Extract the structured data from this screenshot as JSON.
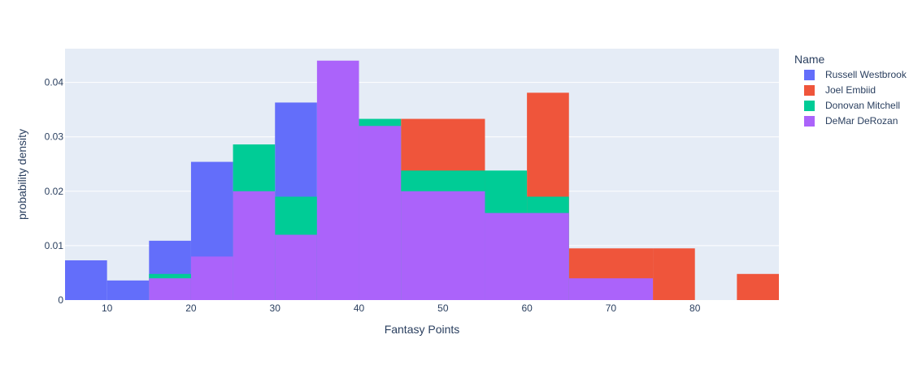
{
  "chart_data": {
    "type": "bar",
    "mode": "overlay",
    "xlabel": "Fantasy Points",
    "ylabel": "probability density",
    "xlim": [
      5,
      90
    ],
    "ylim": [
      0,
      0.0462
    ],
    "bin_size": 10,
    "x_ticks": [
      10,
      20,
      30,
      40,
      50,
      60,
      70,
      80
    ],
    "y_ticks": [
      0,
      0.01,
      0.02,
      0.03,
      0.04
    ],
    "y_tick_labels": [
      "0",
      "0.01",
      "0.02",
      "0.03",
      "0.04"
    ],
    "grid": true,
    "legend": {
      "title": "Name",
      "placement": "right"
    },
    "series": [
      {
        "name": "Russell Westbrook",
        "color": "#636efa",
        "bins": [
          {
            "start": 5,
            "end": 10,
            "value": 0.0073
          },
          {
            "start": 10,
            "end": 15,
            "value": 0.0036
          },
          {
            "start": 15,
            "end": 20,
            "value": 0.0109
          },
          {
            "start": 20,
            "end": 25,
            "value": 0.0254
          },
          {
            "start": 25,
            "end": 30,
            "value": 0.0
          },
          {
            "start": 30,
            "end": 35,
            "value": 0.0363
          },
          {
            "start": 35,
            "end": 40,
            "value": 0.0
          }
        ]
      },
      {
        "name": "Joel Embiid",
        "color": "#EF553B",
        "bins": [
          {
            "start": 45,
            "end": 55,
            "value": 0.0333
          },
          {
            "start": 60,
            "end": 65,
            "value": 0.0381
          },
          {
            "start": 65,
            "end": 75,
            "value": 0.0095
          },
          {
            "start": 75,
            "end": 80,
            "value": 0.0095
          },
          {
            "start": 85,
            "end": 90,
            "value": 0.0048
          }
        ]
      },
      {
        "name": "Donovan Mitchell",
        "color": "#00cc96",
        "bins": [
          {
            "start": 15,
            "end": 20,
            "value": 0.0048
          },
          {
            "start": 25,
            "end": 30,
            "value": 0.0286
          },
          {
            "start": 30,
            "end": 35,
            "value": 0.019
          },
          {
            "start": 40,
            "end": 45,
            "value": 0.0333
          },
          {
            "start": 45,
            "end": 55,
            "value": 0.0238
          },
          {
            "start": 55,
            "end": 60,
            "value": 0.0238
          },
          {
            "start": 60,
            "end": 65,
            "value": 0.019
          }
        ]
      },
      {
        "name": "DeMar DeRozan",
        "color": "#ab63fa",
        "bins": [
          {
            "start": 15,
            "end": 20,
            "value": 0.004
          },
          {
            "start": 20,
            "end": 25,
            "value": 0.008
          },
          {
            "start": 25,
            "end": 30,
            "value": 0.02
          },
          {
            "start": 30,
            "end": 35,
            "value": 0.012
          },
          {
            "start": 35,
            "end": 40,
            "value": 0.044
          },
          {
            "start": 40,
            "end": 45,
            "value": 0.032
          },
          {
            "start": 45,
            "end": 55,
            "value": 0.02
          },
          {
            "start": 55,
            "end": 65,
            "value": 0.016
          },
          {
            "start": 65,
            "end": 75,
            "value": 0.004
          }
        ]
      }
    ]
  },
  "colors": {
    "plot_background": "#e5ecf6",
    "grid": "#ffffff",
    "text": "#2a3f5f"
  }
}
